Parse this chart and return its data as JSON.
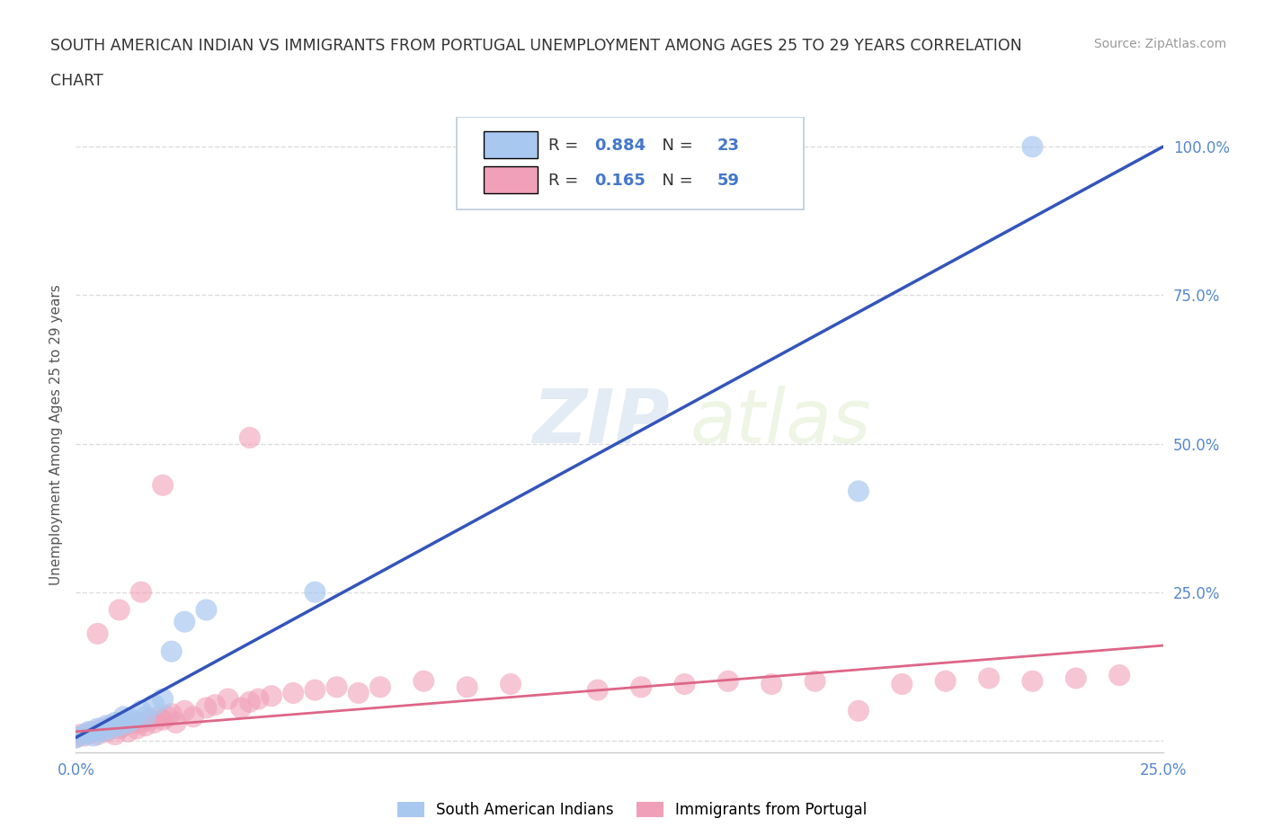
{
  "title_line1": "SOUTH AMERICAN INDIAN VS IMMIGRANTS FROM PORTUGAL UNEMPLOYMENT AMONG AGES 25 TO 29 YEARS CORRELATION",
  "title_line2": "CHART",
  "source_text": "Source: ZipAtlas.com",
  "ylabel": "Unemployment Among Ages 25 to 29 years",
  "xlim": [
    0.0,
    0.25
  ],
  "ylim": [
    -0.02,
    1.05
  ],
  "background_color": "#ffffff",
  "grid_color": "#dddddd",
  "watermark_zip": "ZIP",
  "watermark_atlas": "atlas",
  "blue_color": "#a8c8f0",
  "pink_color": "#f0a0b8",
  "blue_line_color": "#3355bb",
  "pink_line_color": "#dd6688",
  "R_blue": 0.884,
  "N_blue": 23,
  "R_pink": 0.165,
  "N_pink": 59,
  "blue_scatter_x": [
    0.0,
    0.002,
    0.003,
    0.004,
    0.005,
    0.006,
    0.007,
    0.008,
    0.009,
    0.01,
    0.011,
    0.012,
    0.013,
    0.015,
    0.016,
    0.018,
    0.02,
    0.022,
    0.025,
    0.03,
    0.055,
    0.18,
    0.22
  ],
  "blue_scatter_y": [
    0.005,
    0.01,
    0.015,
    0.008,
    0.02,
    0.015,
    0.025,
    0.02,
    0.03,
    0.025,
    0.04,
    0.03,
    0.035,
    0.05,
    0.04,
    0.06,
    0.07,
    0.15,
    0.2,
    0.22,
    0.25,
    0.42,
    1.0
  ],
  "pink_scatter_x": [
    0.0,
    0.001,
    0.002,
    0.003,
    0.004,
    0.005,
    0.006,
    0.007,
    0.008,
    0.009,
    0.01,
    0.011,
    0.012,
    0.013,
    0.014,
    0.015,
    0.016,
    0.017,
    0.018,
    0.019,
    0.02,
    0.021,
    0.022,
    0.023,
    0.025,
    0.027,
    0.03,
    0.032,
    0.035,
    0.038,
    0.04,
    0.042,
    0.045,
    0.05,
    0.055,
    0.06,
    0.065,
    0.07,
    0.08,
    0.09,
    0.1,
    0.12,
    0.13,
    0.14,
    0.15,
    0.16,
    0.17,
    0.18,
    0.19,
    0.2,
    0.21,
    0.22,
    0.23,
    0.24,
    0.005,
    0.01,
    0.015,
    0.02,
    0.04
  ],
  "pink_scatter_y": [
    0.005,
    0.01,
    0.008,
    0.012,
    0.015,
    0.01,
    0.02,
    0.015,
    0.025,
    0.01,
    0.02,
    0.025,
    0.015,
    0.03,
    0.02,
    0.03,
    0.025,
    0.035,
    0.03,
    0.04,
    0.035,
    0.04,
    0.045,
    0.03,
    0.05,
    0.04,
    0.055,
    0.06,
    0.07,
    0.055,
    0.065,
    0.07,
    0.075,
    0.08,
    0.085,
    0.09,
    0.08,
    0.09,
    0.1,
    0.09,
    0.095,
    0.085,
    0.09,
    0.095,
    0.1,
    0.095,
    0.1,
    0.05,
    0.095,
    0.1,
    0.105,
    0.1,
    0.105,
    0.11,
    0.18,
    0.22,
    0.25,
    0.43,
    0.51
  ],
  "legend_blue_label": "South American Indians",
  "legend_pink_label": "Immigrants from Portugal",
  "blue_line_x0": 0.0,
  "blue_line_y0": 0.005,
  "blue_line_x1": 0.25,
  "blue_line_y1": 1.0,
  "pink_line_x0": 0.0,
  "pink_line_y0": 0.015,
  "pink_line_x1": 0.25,
  "pink_line_y1": 0.16
}
